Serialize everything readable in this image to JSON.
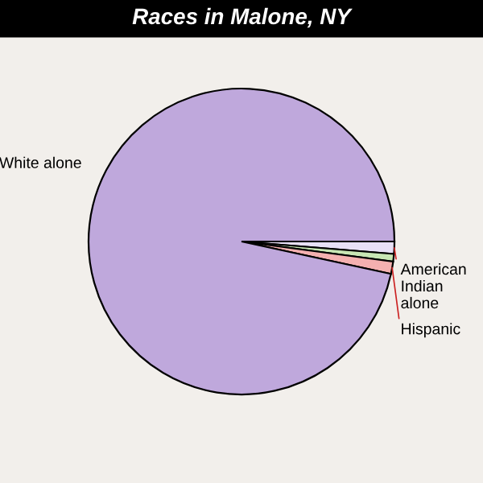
{
  "chart_data": {
    "type": "pie",
    "title": "Races in Malone, NY",
    "categories": [
      "American Indian alone",
      null,
      "Hispanic",
      "White alone"
    ],
    "values": [
      1.3,
      0.8,
      1.3,
      96.6
    ],
    "colors": [
      "#e8e0f6",
      "#c8e6b4",
      "#f4b0b0",
      "#bfa8dc"
    ]
  }
}
